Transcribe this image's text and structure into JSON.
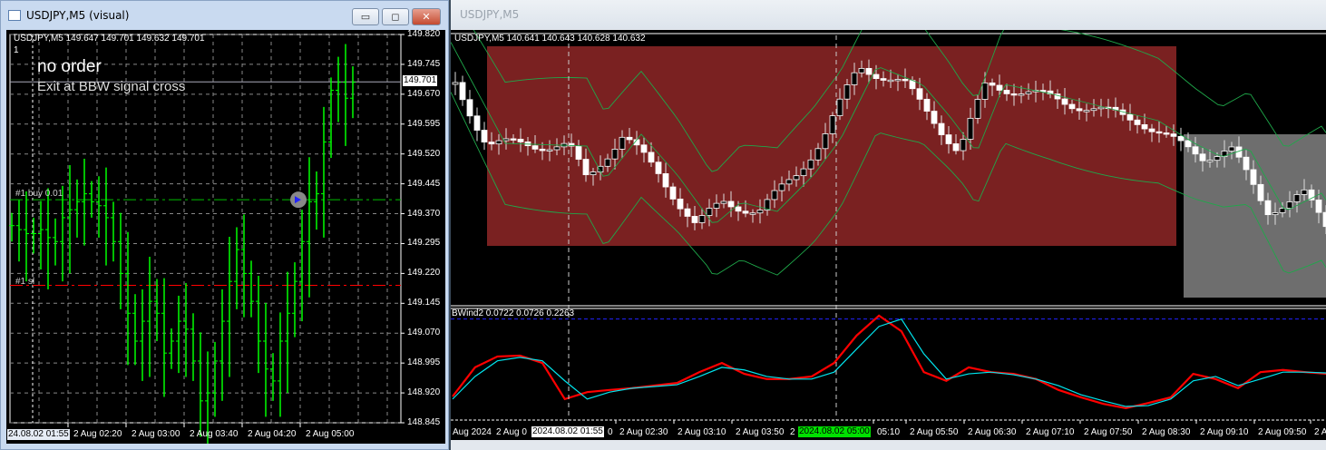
{
  "left_window": {
    "title": "USDJPY,M5 (visual)",
    "buttons": {
      "minimize": "▭",
      "maximize": "◻",
      "close": "✕"
    },
    "header": "USDJPY,M5  149.647 149.701 149.632 149.701",
    "sub_index": "1",
    "comment_title": "no order",
    "comment_sub": "Exit at BBW signal cross",
    "buy_label": "#1 buy 0.01",
    "sl_label": "#1 sl",
    "current_price": "149.701",
    "price_ticks": [
      "149.820",
      "149.745",
      "149.670",
      "149.595",
      "149.520",
      "149.445",
      "149.370",
      "149.295",
      "149.220",
      "149.145",
      "149.070",
      "148.995",
      "148.920",
      "148.845"
    ],
    "time_cursor": "24.08.02 01:55",
    "time_ticks": [
      "2 Aug 02:20",
      "2 Aug 03:00",
      "2 Aug 03:40",
      "2 Aug 04:20",
      "2 Aug 05:00"
    ],
    "chart_data": {
      "type": "bar",
      "ylim": [
        148.845,
        149.82
      ],
      "buy_price": 149.405,
      "sl_price": 149.19,
      "closes": [
        149.34,
        149.33,
        149.32,
        149.32,
        149.33,
        149.31,
        149.3,
        149.36,
        149.38,
        149.4,
        149.42,
        149.4,
        149.39,
        149.36,
        149.3,
        149.22,
        149.12,
        149.05,
        149.1,
        149.15,
        149.12,
        149.02,
        149.05,
        149.1,
        149.08,
        149.0,
        148.9,
        148.92,
        149.0,
        149.1,
        149.2,
        149.28,
        149.22,
        149.15,
        149.05,
        148.98,
        148.95,
        149.05,
        149.12,
        149.2,
        149.3,
        149.4,
        149.42,
        149.55,
        149.68,
        149.7,
        149.66,
        149.7
      ],
      "colors": {
        "bars": "#00ff00",
        "buy_line": "#00c000",
        "sl_line": "#ff0000"
      }
    }
  },
  "right_window": {
    "title": "USDJPY,M5",
    "header": "USDJPY,M5  140.641 140.643 140.628 140.632",
    "indicator_header": "BWind2 0.0722 0.0726 0.2263",
    "time_first": "Aug 2024",
    "time_partial_left": "2 Aug 0",
    "time_cursor_1": "2024.08.02 01:55",
    "time_partial_1": "0",
    "time_cursor_2": "2024.08.02 05:00",
    "time_partial_2": "2",
    "time_ticks": [
      "2 Aug 02:30",
      "2 Aug 03:10",
      "2 Aug 03:50",
      "05:10",
      "2 Aug 05:50",
      "2 Aug 06:30",
      "2 Aug 07:10",
      "2 Aug 07:50",
      "2 Aug 08:30",
      "2 Aug 09:10",
      "2 Aug 09:50",
      "2 A"
    ],
    "colors": {
      "zone_red": "#7a2121",
      "zone_gray": "#6e6e6e",
      "bands": "#1fa84a",
      "cursor_green": "#00e000"
    },
    "indicator_data": {
      "type": "line",
      "ylim": [
        0,
        0.24
      ],
      "level": 0.2263,
      "series": [
        {
          "color": "#ff0000",
          "values": [
            0.048,
            0.115,
            0.14,
            0.142,
            0.125,
            0.042,
            0.058,
            0.063,
            0.067,
            0.073,
            0.079,
            0.104,
            0.125,
            0.1,
            0.088,
            0.088,
            0.094,
            0.125,
            0.188,
            0.234,
            0.198,
            0.104,
            0.084,
            0.115,
            0.104,
            0.1,
            0.088,
            0.063,
            0.046,
            0.031,
            0.021,
            0.033,
            0.046,
            0.1,
            0.088,
            0.067,
            0.104,
            0.109,
            0.104,
            0.1
          ]
        },
        {
          "color": "#00e5ee",
          "values": [
            0.042,
            0.094,
            0.13,
            0.138,
            0.13,
            0.084,
            0.042,
            0.058,
            0.067,
            0.071,
            0.075,
            0.094,
            0.115,
            0.109,
            0.094,
            0.088,
            0.088,
            0.104,
            0.157,
            0.209,
            0.226,
            0.146,
            0.088,
            0.1,
            0.104,
            0.098,
            0.088,
            0.073,
            0.052,
            0.038,
            0.025,
            0.027,
            0.042,
            0.084,
            0.094,
            0.073,
            0.088,
            0.104,
            0.104,
            0.102
          ]
        }
      ]
    }
  }
}
